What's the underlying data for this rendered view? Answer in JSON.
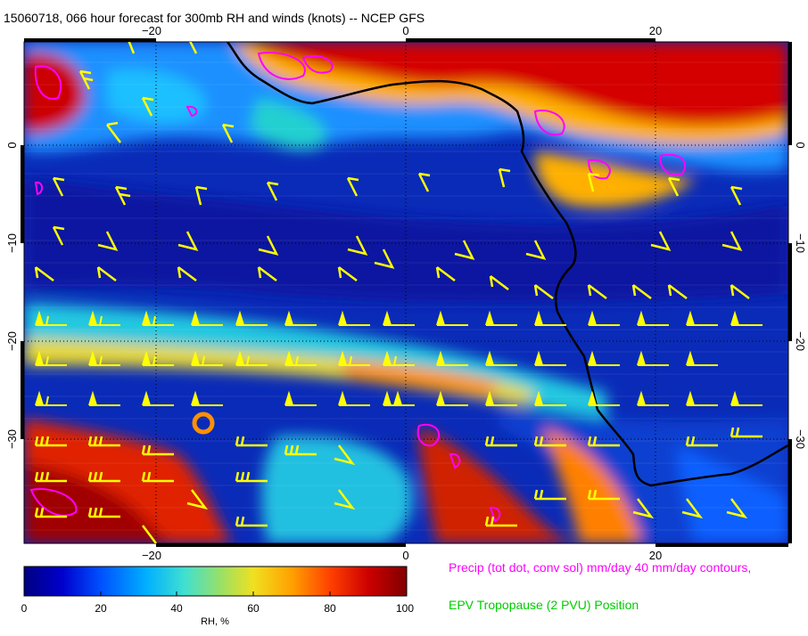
{
  "title": "15060718, 066 hour forecast for 300mb RH and winds (knots) -- NCEP GFS",
  "map": {
    "lon_ticks_top": [
      "−20",
      "0",
      "20"
    ],
    "lon_ticks_bottom": [
      "−20",
      "0",
      "20"
    ],
    "lat_ticks_left": [
      "0",
      "−10",
      "−20",
      "−30"
    ],
    "lat_ticks_right": [
      "0",
      "−10",
      "−20",
      "−30"
    ],
    "coastline_color": "#000000",
    "wind_barb_color": "#ffff00",
    "precip_contour_color": "#ff00ff"
  },
  "colorbar": {
    "labels": [
      "0",
      "20",
      "40",
      "60",
      "80",
      "100"
    ],
    "title": "RH, %",
    "stops": [
      "#000080",
      "#0000cd",
      "#0050ff",
      "#00b0ff",
      "#40e0d0",
      "#a0e060",
      "#f0e020",
      "#ffa000",
      "#ff4000",
      "#cc0000",
      "#800000"
    ]
  },
  "legend": {
    "precip": "Precip (tot dot, conv sol) mm/day 40 mm/day contours,",
    "epv": "EPV Tropopause (2 PVU) Position"
  }
}
